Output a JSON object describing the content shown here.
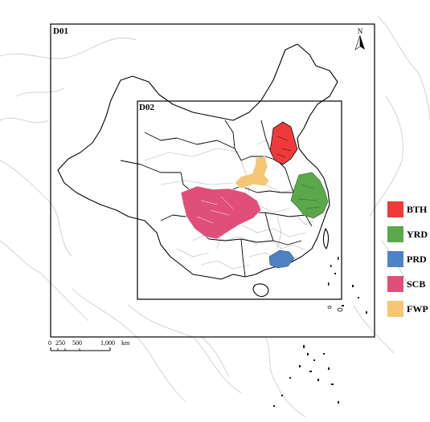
{
  "domains": [
    {
      "id": "d01",
      "label": "D01"
    },
    {
      "id": "d02",
      "label": "D02"
    }
  ],
  "north_arrow": {
    "label": "N"
  },
  "legend": [
    {
      "id": "bth",
      "label": "BTH",
      "color": "#f03a3a"
    },
    {
      "id": "yrd",
      "label": "YRD",
      "color": "#5aa84a"
    },
    {
      "id": "prd",
      "label": "PRD",
      "color": "#4d83c4"
    },
    {
      "id": "scb",
      "label": "SCB",
      "color": "#e04e7a"
    },
    {
      "id": "fwp",
      "label": "FWP",
      "color": "#f5c674"
    }
  ],
  "scale_bar": {
    "ticks": [
      "0",
      "250",
      "500",
      "1,000"
    ],
    "unit": "km"
  }
}
